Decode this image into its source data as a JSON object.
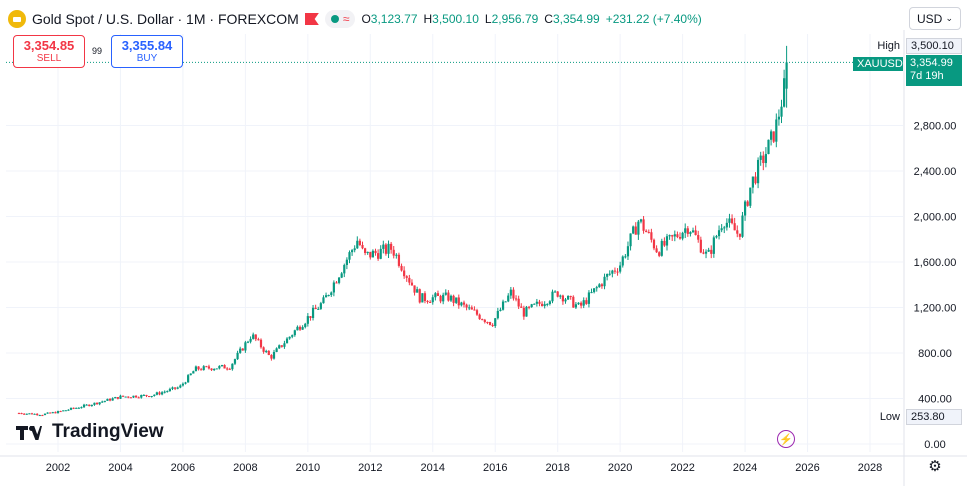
{
  "header": {
    "title": "Gold Spot / U.S. Dollar · 1M · FOREXCOM",
    "ohlc": [
      {
        "key": "O",
        "value": "3,123.77"
      },
      {
        "key": "H",
        "value": "3,500.10"
      },
      {
        "key": "L",
        "value": "2,956.79"
      },
      {
        "key": "C",
        "value": "3,354.99"
      }
    ],
    "change": "+231.22 (+7.40%)",
    "status_glyph": "≈"
  },
  "trade": {
    "sell_price": "3,354.85",
    "sell_label": "SELL",
    "buy_price": "3,355.84",
    "buy_label": "BUY",
    "spread": "99"
  },
  "currency": {
    "label": "USD",
    "chevron": "⌄"
  },
  "price_axis": {
    "high_label": "High",
    "high_value": "3,500.10",
    "low_label": "Low",
    "low_value": "253.80",
    "symbol_tag": "XAUUSD",
    "last_value": "3,354.99",
    "countdown": "7d 19h"
  },
  "branding": {
    "name": "TradingView"
  },
  "icons": {
    "bolt": "⚡",
    "settings": "⚙"
  },
  "colors": {
    "up": "#089981",
    "down": "#f23645",
    "grid": "#f0f3fa",
    "last_line": "#089981"
  },
  "chart_data": {
    "type": "candlestick",
    "symbol": "XAUUSD",
    "interval": "1M",
    "ylim": [
      0,
      3800
    ],
    "xlim": [
      2000.75,
      2029.3
    ],
    "y_ticks": [
      0,
      400,
      800,
      1200,
      1600,
      2000,
      2400,
      2800
    ],
    "y_tick_labels": [
      "0.00",
      "400.00",
      "800.00",
      "1,200.00",
      "1,600.00",
      "2,000.00",
      "2,400.00",
      "2,800.00"
    ],
    "x_ticks": [
      2002,
      2004,
      2006,
      2008,
      2010,
      2012,
      2014,
      2016,
      2018,
      2020,
      2022,
      2024,
      2026,
      2028
    ],
    "x_tick_labels": [
      "2002",
      "2004",
      "2006",
      "2008",
      "2010",
      "2012",
      "2014",
      "2016",
      "2018",
      "2020",
      "2022",
      "2024",
      "2026",
      "2028"
    ],
    "last_price": 3354.99,
    "high": 3500.1,
    "low": 253.8,
    "grid": true,
    "anchors": [
      [
        2000.75,
        272
      ],
      [
        2001.5,
        260
      ],
      [
        2002.0,
        282
      ],
      [
        2003.0,
        345
      ],
      [
        2004.0,
        415
      ],
      [
        2005.0,
        428
      ],
      [
        2005.9,
        500
      ],
      [
        2006.4,
        660
      ],
      [
        2007.5,
        680
      ],
      [
        2008.2,
        960
      ],
      [
        2008.8,
        760
      ],
      [
        2009.6,
        1000
      ],
      [
        2010.5,
        1250
      ],
      [
        2011.6,
        1800
      ],
      [
        2011.8,
        1650
      ],
      [
        2012.7,
        1720
      ],
      [
        2013.3,
        1420
      ],
      [
        2013.6,
        1280
      ],
      [
        2014.5,
        1290
      ],
      [
        2015.9,
        1060
      ],
      [
        2016.5,
        1330
      ],
      [
        2016.9,
        1150
      ],
      [
        2018.0,
        1330
      ],
      [
        2018.7,
        1200
      ],
      [
        2019.6,
        1480
      ],
      [
        2020.0,
        1580
      ],
      [
        2020.6,
        1970
      ],
      [
        2021.2,
        1700
      ],
      [
        2022.2,
        1920
      ],
      [
        2022.8,
        1640
      ],
      [
        2023.3,
        1980
      ],
      [
        2023.8,
        1840
      ],
      [
        2024.2,
        2290
      ],
      [
        2024.8,
        2640
      ],
      [
        2025.0,
        2800
      ],
      [
        2025.25,
        3123.77
      ]
    ],
    "last_candle": {
      "x": 2025.33,
      "open": 3123.77,
      "high": 3500.1,
      "low": 2956.79,
      "close": 3354.99
    }
  }
}
